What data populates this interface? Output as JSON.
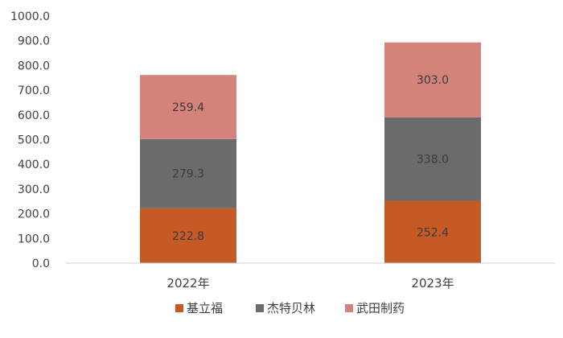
{
  "chart_data": {
    "type": "bar",
    "stacked": true,
    "categories": [
      "2022年",
      "2023年"
    ],
    "series": [
      {
        "name": "基立福",
        "values": [
          222.8,
          252.4
        ],
        "color": "#C55A27"
      },
      {
        "name": "杰特贝林",
        "values": [
          279.3,
          338.0
        ],
        "color": "#6B6B6B"
      },
      {
        "name": "武田制药",
        "values": [
          259.4,
          303.0
        ],
        "color": "#D4837A"
      }
    ],
    "data_labels": [
      [
        "222.8",
        "252.4"
      ],
      [
        "279.3",
        "338.0"
      ],
      [
        "259.4",
        "303.0"
      ]
    ],
    "yticks": [
      "0.0",
      "100.0",
      "200.0",
      "300.0",
      "400.0",
      "500.0",
      "600.0",
      "700.0",
      "800.0",
      "900.0",
      "1000.0"
    ],
    "ylim": [
      0,
      1000
    ],
    "grid": false,
    "legend_position": "bottom"
  }
}
